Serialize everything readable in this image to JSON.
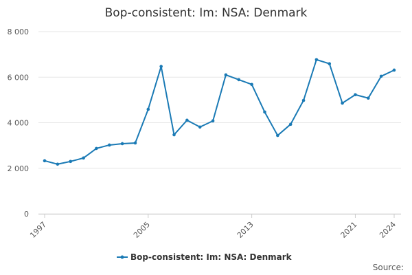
{
  "chart_data": {
    "type": "line",
    "title": "Bop-consistent: Im: NSA: Denmark",
    "source": "Source:",
    "x": [
      1997,
      1998,
      1999,
      2000,
      2001,
      2002,
      2003,
      2004,
      2005,
      2006,
      2007,
      2008,
      2009,
      2010,
      2011,
      2012,
      2013,
      2014,
      2015,
      2016,
      2017,
      2018,
      2019,
      2020,
      2021,
      2022,
      2023,
      2024
    ],
    "series": [
      {
        "name": "Bop-consistent: Im: NSA: Denmark",
        "color": "#1a7ab5",
        "values": [
          2330,
          2180,
          2300,
          2450,
          2870,
          3020,
          3080,
          3110,
          4590,
          6470,
          3470,
          4110,
          3810,
          4080,
          6100,
          5890,
          5680,
          4470,
          3440,
          3930,
          4980,
          6770,
          6590,
          4860,
          5230,
          5080,
          6040,
          6310
        ]
      }
    ],
    "xlim": [
      1997,
      2024
    ],
    "xticks": [
      1997,
      2005,
      2013,
      2021,
      2024
    ],
    "ylim": [
      0,
      8000
    ],
    "yticks": [
      0,
      {
        "value": 2000,
        "label": "2 000"
      },
      {
        "value": 4000,
        "label": "4 000"
      },
      {
        "value": 6000,
        "label": "6 000"
      },
      {
        "value": 8000,
        "label": "8 000"
      }
    ],
    "grid": true
  }
}
